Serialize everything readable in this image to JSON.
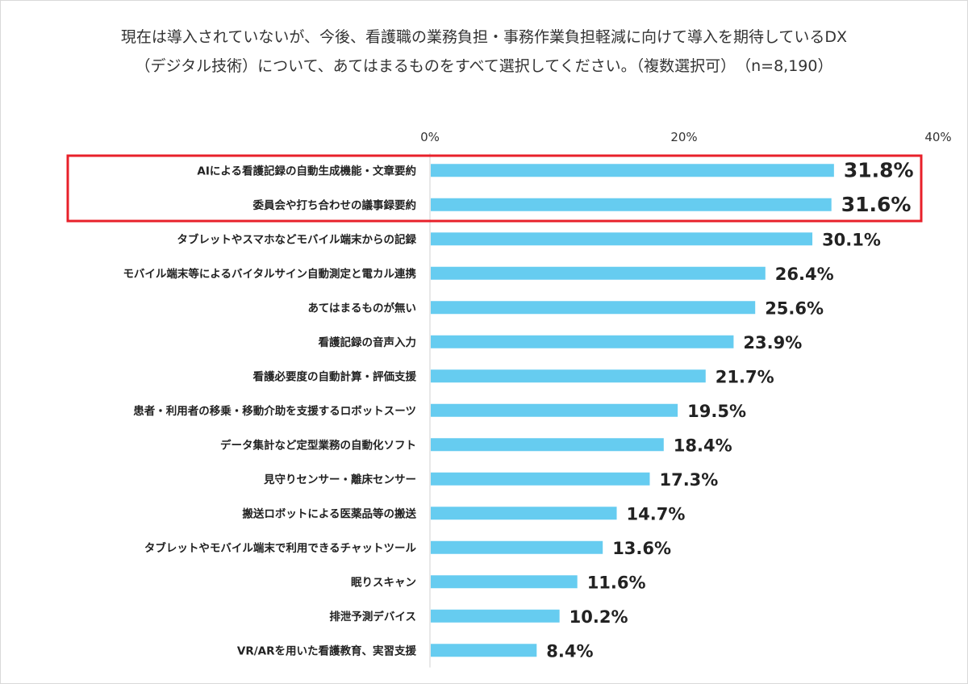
{
  "chart_data": {
    "type": "bar",
    "orientation": "horizontal",
    "title": "現在は導入されていないが、今後、看護職の業務負担・事務作業負担軽減に向けて導入を期待しているDX",
    "subtitle": "（デジタル技術）について、あてはまるものをすべて選択してください。（複数選択可）　（n=8,190）",
    "xlabel": "",
    "ylabel": "",
    "xlim": [
      0,
      40
    ],
    "ticks": [
      "0%",
      "20%",
      "40%"
    ],
    "tick_values": [
      0,
      20,
      40
    ],
    "grid": false,
    "bar_color": "#66ccf0",
    "highlight_color": "#e8202a",
    "highlight_count": 2,
    "categories": [
      "AIによる看護記録の自動生成機能・文章要約",
      "委員会や打ち合わせの議事録要約",
      "タブレットやスマホなどモバイル端末からの記録",
      "モバイル端末等によるバイタルサイン自動測定と電カル連携",
      "あてはまるものが無い",
      "看護記録の音声入力",
      "看護必要度の自動計算・評価支援",
      "患者・利用者の移乗・移動介助を支援するロボットスーツ",
      "データ集計など定型業務の自動化ソフト",
      "見守りセンサー・離床センサー",
      "搬送ロボットによる医薬品等の搬送",
      "タブレットやモバイル端末で利用できるチャットツール",
      "眠りスキャン",
      "排泄予測デバイス",
      "VR/ARを用いた看護教育、実習支援"
    ],
    "values": [
      31.8,
      31.6,
      30.1,
      26.4,
      25.6,
      23.9,
      21.7,
      19.5,
      18.4,
      17.3,
      14.7,
      13.6,
      11.6,
      10.2,
      8.4
    ],
    "value_labels": [
      "31.8%",
      "31.6%",
      "30.1%",
      "26.4%",
      "25.6%",
      "23.9%",
      "21.7%",
      "19.5%",
      "18.4%",
      "17.3%",
      "14.7%",
      "13.6%",
      "11.6%",
      "10.2%",
      "8.4%"
    ]
  }
}
